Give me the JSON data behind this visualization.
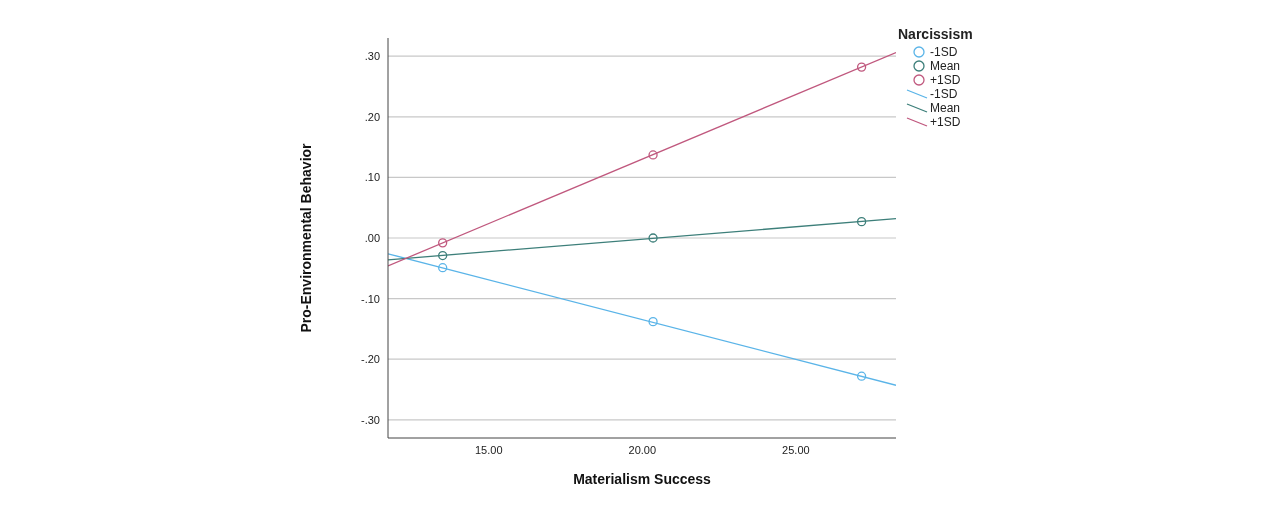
{
  "chart_data": {
    "type": "line",
    "xlabel": "Materialism Success",
    "ylabel": "Pro-Environmental Behavior",
    "legend_title": "Narcissism",
    "legend": "top right",
    "grid": "y",
    "line_style": "solid",
    "xlim": [
      11.72,
      28.26
    ],
    "xticks": [
      {
        "value": 15,
        "label": "15.00"
      },
      {
        "value": 20,
        "label": "20.00"
      },
      {
        "value": 25,
        "label": "25.00"
      }
    ],
    "ylim": [
      -0.33,
      0.33
    ],
    "yticks": [
      {
        "value": -0.3,
        "label": "-.30"
      },
      {
        "value": -0.2,
        "label": "-.20"
      },
      {
        "value": -0.1,
        "label": "-.10"
      },
      {
        "value": 0,
        "label": ".00"
      },
      {
        "value": 0.1,
        "label": ".10"
      },
      {
        "value": 0.2,
        "label": ".20"
      },
      {
        "value": 0.3,
        "label": ".30"
      }
    ],
    "series": [
      {
        "name": "-1SD",
        "type": "scatter",
        "marker": "circle",
        "color": "#5ab4e8",
        "x": [
          13.5,
          20.35,
          27.14
        ],
        "values": [
          -0.049,
          -0.138,
          -0.228
        ]
      },
      {
        "name": "Mean",
        "type": "scatter",
        "marker": "circle",
        "color": "#3d7f7a",
        "x": [
          13.5,
          20.35,
          27.14
        ],
        "values": [
          -0.029,
          0.0,
          0.027
        ]
      },
      {
        "name": "+1SD",
        "type": "scatter",
        "marker": "circle",
        "color": "#c0587e",
        "x": [
          13.5,
          20.35,
          27.14
        ],
        "values": [
          -0.008,
          0.137,
          0.282
        ]
      },
      {
        "name": "-1SD",
        "color": "#5ab4e8",
        "x": [
          11.72,
          28.26
        ],
        "values": [
          -0.026,
          -0.243
        ]
      },
      {
        "name": "Mean",
        "color": "#3d7f7a",
        "x": [
          11.72,
          28.26
        ],
        "values": [
          -0.036,
          0.032
        ]
      },
      {
        "name": "+1SD",
        "color": "#c0587e",
        "x": [
          11.72,
          28.26
        ],
        "values": [
          -0.046,
          0.306
        ]
      }
    ]
  }
}
